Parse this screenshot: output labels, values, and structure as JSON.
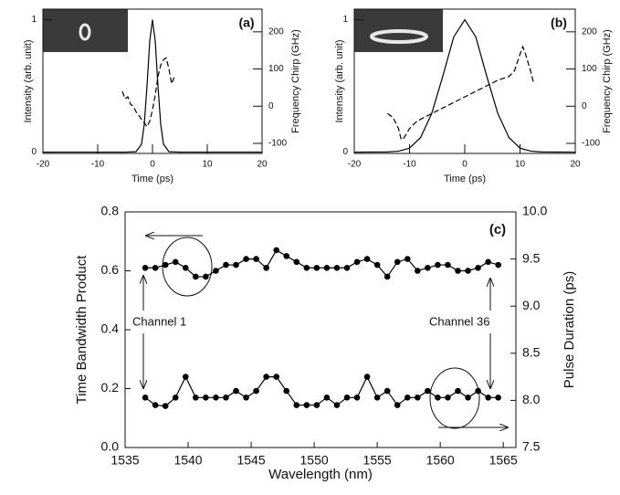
{
  "chart_data": [
    {
      "type": "line",
      "xlabel": "Time (ps)",
      "ylabel": "Intensity (arb. unit)",
      "y2label": "Frequency Chirp (GHz)",
      "annotations": [
        "(a)"
      ],
      "xlim": [
        -20,
        20
      ],
      "xticks": [
        -20,
        -10,
        0,
        10,
        20
      ],
      "ylim": [
        -0.01,
        1.08
      ],
      "yticks": [
        0,
        1
      ],
      "y2lim": [
        -127,
        261
      ],
      "y2ticks": [
        -100,
        0,
        100,
        200
      ],
      "series": [
        {
          "color": "#000000",
          "linestyle": "solid",
          "x": [
            -20,
            -5,
            -3,
            -2,
            -1.5,
            -1,
            -0.5,
            0,
            0.5,
            1,
            1.5,
            2,
            3,
            5,
            20
          ],
          "values": [
            0,
            0,
            0.003,
            0.06,
            0.21,
            0.5,
            0.84,
            1,
            0.84,
            0.5,
            0.21,
            0.06,
            0.003,
            0,
            0
          ]
        },
        {
          "color": "#000000",
          "linestyle": "dashed",
          "axis": "y2",
          "x": [
            -5.5,
            -5,
            -4.5,
            -4,
            -3.5,
            -3,
            -2.5,
            -2,
            -1.5,
            -1,
            -0.5,
            0,
            0.5,
            1,
            1.5,
            2,
            2.5,
            3,
            3.5,
            4
          ],
          "values": [
            40,
            20,
            25,
            5,
            0,
            -15,
            -25,
            -35,
            -45,
            -55,
            -40,
            -10,
            30,
            80,
            110,
            125,
            130,
            100,
            60,
            80
          ]
        }
      ]
    },
    {
      "type": "line",
      "xlabel": "Time (ps)",
      "ylabel": "Intensity (arb. unit)",
      "y2label": "Frequency Chirp (GHz)",
      "annotations": [
        "(b)"
      ],
      "xlim": [
        -20,
        20
      ],
      "xticks": [
        -20,
        -10,
        0,
        10,
        20
      ],
      "ylim": [
        -0.01,
        1.08
      ],
      "yticks": [
        0,
        1
      ],
      "y2lim": [
        -127,
        261
      ],
      "y2ticks": [
        -100,
        0,
        100,
        200
      ],
      "series": [
        {
          "color": "#000000",
          "linestyle": "solid",
          "x": [
            -20,
            -14,
            -12,
            -10,
            -8,
            -6,
            -4,
            -2,
            0,
            2,
            4,
            6,
            8,
            10,
            12,
            14,
            20
          ],
          "values": [
            0,
            0.001,
            0.007,
            0.03,
            0.11,
            0.29,
            0.57,
            0.87,
            1,
            0.87,
            0.57,
            0.29,
            0.11,
            0.03,
            0.007,
            0.001,
            0
          ]
        },
        {
          "color": "#000000",
          "linestyle": "dashed",
          "axis": "y2",
          "x": [
            -14,
            -13,
            -12,
            -11.5,
            -11,
            -10,
            -9,
            -8,
            -6,
            -4,
            -2,
            0,
            2,
            4,
            6,
            8,
            9,
            10,
            10.5,
            11,
            12,
            12.5
          ],
          "values": [
            -20,
            -30,
            -60,
            -90,
            -85,
            -60,
            -45,
            -35,
            -20,
            -5,
            10,
            25,
            40,
            55,
            70,
            80,
            95,
            140,
            160,
            140,
            90,
            60
          ]
        }
      ]
    },
    {
      "type": "line",
      "xlabel": "Wavelength (nm)",
      "ylabel": "Time Bandwidth Product",
      "y2label": "Pulse Duration (ps)",
      "annotations": [
        "(c)",
        "Channel 1",
        "Channel 36"
      ],
      "xlim": [
        1535,
        1566
      ],
      "xticks": [
        1535,
        1540,
        1545,
        1550,
        1555,
        1560,
        1565
      ],
      "ylim": [
        0,
        0.8
      ],
      "yticks": [
        {
          "value": 0,
          "label": "0.0"
        },
        0.2,
        0.4,
        0.6,
        0.8
      ],
      "y2lim": [
        7.5,
        10
      ],
      "y2ticks": [
        7.5,
        {
          "value": 8,
          "label": "8.0"
        },
        8.5,
        {
          "value": 9,
          "label": "9.0"
        },
        9.5,
        {
          "value": 10,
          "label": "10.0"
        }
      ],
      "x": [
        1536.6,
        1537.4,
        1538.2,
        1539,
        1539.8,
        1540.6,
        1541.4,
        1542.2,
        1543,
        1543.8,
        1544.6,
        1545.4,
        1546.2,
        1547,
        1547.8,
        1548.6,
        1549.4,
        1550.2,
        1551,
        1551.8,
        1552.6,
        1553.4,
        1554.2,
        1555,
        1555.8,
        1556.6,
        1557.4,
        1558.2,
        1559,
        1559.8,
        1560.6,
        1561.4,
        1562.2,
        1563,
        1563.8,
        1564.6
      ],
      "marker": true,
      "series": [
        {
          "color": "#000000",
          "linestyle": "solid",
          "values": [
            0.61,
            0.61,
            0.62,
            0.63,
            0.61,
            0.58,
            0.58,
            0.6,
            0.62,
            0.62,
            0.64,
            0.64,
            0.61,
            0.67,
            0.65,
            0.63,
            0.61,
            0.61,
            0.61,
            0.61,
            0.61,
            0.63,
            0.64,
            0.62,
            0.58,
            0.63,
            0.64,
            0.6,
            0.61,
            0.62,
            0.62,
            0.6,
            0.6,
            0.61,
            0.63,
            0.62
          ]
        },
        {
          "color": "#000000",
          "linestyle": "solid",
          "axis": "y2",
          "values": [
            8.03,
            7.95,
            7.94,
            8.03,
            8.25,
            8.03,
            8.03,
            8.03,
            8.03,
            8.1,
            8.03,
            8.1,
            8.25,
            8.25,
            8.1,
            7.95,
            7.95,
            7.95,
            8.03,
            7.95,
            8.03,
            8.03,
            8.25,
            8.03,
            8.1,
            7.95,
            8.03,
            8.03,
            8.1,
            8.03,
            8.03,
            8.1,
            8.03,
            8.1,
            8.03,
            8.03
          ]
        }
      ]
    }
  ]
}
